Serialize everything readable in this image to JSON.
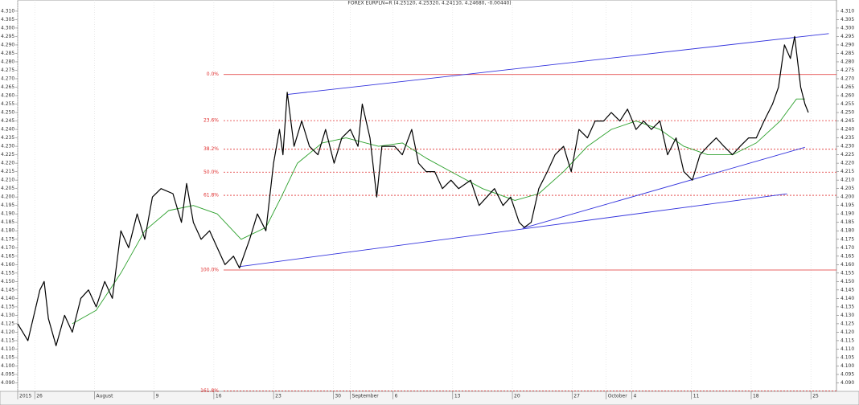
{
  "chart_data": {
    "type": "line",
    "title": "FOREX EURPLN=R (4.25120, 4.25320, 4.24110, 4.24680, -0.00440)",
    "xlim": [
      0,
      96
    ],
    "ylim": [
      4.085,
      4.3166
    ],
    "xticks": [
      {
        "value": 0,
        "label": "2015"
      },
      {
        "value": 2,
        "label": "26"
      },
      {
        "value": 9,
        "label": "August"
      },
      {
        "value": 16,
        "label": "9"
      },
      {
        "value": 23,
        "label": "16"
      },
      {
        "value": 30,
        "label": "23"
      },
      {
        "value": 37,
        "label": "30"
      },
      {
        "value": 39,
        "label": "September"
      },
      {
        "value": 44,
        "label": "6"
      },
      {
        "value": 51,
        "label": "13"
      },
      {
        "value": 58,
        "label": "20"
      },
      {
        "value": 65,
        "label": "27"
      },
      {
        "value": 69,
        "label": "October"
      },
      {
        "value": 72,
        "label": "4"
      },
      {
        "value": 79,
        "label": "11"
      },
      {
        "value": 86,
        "label": "18"
      },
      {
        "value": 93,
        "label": "25"
      }
    ],
    "yticks": [
      {
        "value": 4.09,
        "label": "4.090"
      },
      {
        "value": 4.095,
        "label": "4.095"
      },
      {
        "value": 4.1,
        "label": "4.100"
      },
      {
        "value": 4.105,
        "label": "4.105"
      },
      {
        "value": 4.11,
        "label": "4.110"
      },
      {
        "value": 4.115,
        "label": "4.115"
      },
      {
        "value": 4.12,
        "label": "4.120"
      },
      {
        "value": 4.125,
        "label": "4.125"
      },
      {
        "value": 4.13,
        "label": "4.130"
      },
      {
        "value": 4.135,
        "label": "4.135"
      },
      {
        "value": 4.14,
        "label": "4.140"
      },
      {
        "value": 4.145,
        "label": "4.145"
      },
      {
        "value": 4.15,
        "label": "4.150"
      },
      {
        "value": 4.155,
        "label": "4.155"
      },
      {
        "value": 4.16,
        "label": "4.160"
      },
      {
        "value": 4.165,
        "label": "4.165"
      },
      {
        "value": 4.17,
        "label": "4.170"
      },
      {
        "value": 4.175,
        "label": "4.175"
      },
      {
        "value": 4.18,
        "label": "4.180"
      },
      {
        "value": 4.185,
        "label": "4.185"
      },
      {
        "value": 4.19,
        "label": "4.190"
      },
      {
        "value": 4.195,
        "label": "4.195"
      },
      {
        "value": 4.2,
        "label": "4.200"
      },
      {
        "value": 4.205,
        "label": "4.205"
      },
      {
        "value": 4.21,
        "label": "4.210"
      },
      {
        "value": 4.215,
        "label": "4.215"
      },
      {
        "value": 4.22,
        "label": "4.220"
      },
      {
        "value": 4.225,
        "label": "4.225"
      },
      {
        "value": 4.23,
        "label": "4.230"
      },
      {
        "value": 4.235,
        "label": "4.235"
      },
      {
        "value": 4.24,
        "label": "4.240"
      },
      {
        "value": 4.245,
        "label": "4.245"
      },
      {
        "value": 4.25,
        "label": "4.250"
      },
      {
        "value": 4.255,
        "label": "4.255"
      },
      {
        "value": 4.26,
        "label": "4.260"
      },
      {
        "value": 4.265,
        "label": "4.265"
      },
      {
        "value": 4.27,
        "label": "4.270"
      },
      {
        "value": 4.275,
        "label": "4.275"
      },
      {
        "value": 4.28,
        "label": "4.280"
      },
      {
        "value": 4.285,
        "label": "4.285"
      },
      {
        "value": 4.29,
        "label": "4.290"
      },
      {
        "value": 4.295,
        "label": "4.295"
      },
      {
        "value": 4.3,
        "label": "4.300"
      },
      {
        "value": 4.305,
        "label": "4.305"
      },
      {
        "value": 4.31,
        "label": "4.310"
      }
    ],
    "xgrid": true,
    "series": [
      {
        "color": "#000000",
        "x": [
          0,
          1.2,
          2.6,
          3.1,
          3.6,
          4.5,
          5.5,
          6.4,
          7.4,
          8.3,
          9.2,
          10.2,
          11.1,
          12.1,
          13.0,
          14.0,
          14.9,
          15.8,
          16.8,
          18.2,
          19.2,
          19.8,
          20.6,
          21.5,
          22.5,
          23.4,
          24.3,
          25.3,
          26.0,
          27.2,
          28.1,
          29.1,
          30.0,
          30.7,
          31.1,
          31.6,
          32.4,
          33.3,
          34.2,
          35.2,
          36.1,
          37.1,
          38.0,
          39.0,
          39.9,
          40.4,
          41.3,
          42.1,
          42.7,
          44.2,
          45.1,
          46.2,
          47.0,
          47.9,
          48.9,
          49.8,
          50.8,
          51.7,
          53.1,
          54.1,
          55.0,
          55.9,
          56.9,
          57.8,
          58.8,
          59.4,
          60.2,
          61.1,
          62.1,
          63.0,
          64.0,
          64.9,
          65.8,
          66.8,
          67.7,
          68.7,
          69.6,
          70.6,
          71.5,
          72.5,
          73.4,
          74.3,
          75.3,
          76.2,
          77.2,
          78.1,
          79.1,
          80.0,
          80.9,
          81.9,
          82.8,
          83.8,
          84.7,
          85.7,
          86.6,
          87.5,
          88.5,
          89.2,
          89.9,
          90.6,
          91.1,
          91.8,
          92.3,
          92.7
        ],
        "values": [
          4.125,
          4.115,
          4.145,
          4.15,
          4.128,
          4.112,
          4.13,
          4.12,
          4.14,
          4.145,
          4.135,
          4.15,
          4.14,
          4.18,
          4.17,
          4.19,
          4.175,
          4.2,
          4.205,
          4.202,
          4.185,
          4.208,
          4.185,
          4.175,
          4.18,
          4.17,
          4.16,
          4.165,
          4.158,
          4.175,
          4.19,
          4.18,
          4.22,
          4.24,
          4.225,
          4.262,
          4.23,
          4.245,
          4.23,
          4.225,
          4.24,
          4.22,
          4.235,
          4.24,
          4.23,
          4.255,
          4.235,
          4.2,
          4.23,
          4.23,
          4.225,
          4.24,
          4.22,
          4.215,
          4.215,
          4.205,
          4.21,
          4.205,
          4.21,
          4.195,
          4.2,
          4.205,
          4.195,
          4.2,
          4.185,
          4.182,
          4.185,
          4.205,
          4.215,
          4.225,
          4.23,
          4.215,
          4.24,
          4.235,
          4.245,
          4.245,
          4.25,
          4.245,
          4.252,
          4.24,
          4.245,
          4.24,
          4.245,
          4.225,
          4.235,
          4.215,
          4.21,
          4.225,
          4.23,
          4.235,
          4.23,
          4.225,
          4.23,
          4.235,
          4.235,
          4.245,
          4.255,
          4.265,
          4.29,
          4.282,
          4.295,
          4.265,
          4.255,
          4.25
        ]
      },
      {
        "color": "#2ca02c",
        "x": [
          6.4,
          9.2,
          12.1,
          14.9,
          17.7,
          20.6,
          23.4,
          26.2,
          29.1,
          30.9,
          32.8,
          35.7,
          38.5,
          42.3,
          45.1,
          47.9,
          50.8,
          54.5,
          58.3,
          61.1,
          64.0,
          66.8,
          69.6,
          72.5,
          75.3,
          78.1,
          80.9,
          83.8,
          86.6,
          89.4,
          91.3,
          92.3
        ],
        "values": [
          4.125,
          4.133,
          4.155,
          4.18,
          4.192,
          4.195,
          4.19,
          4.175,
          4.182,
          4.2,
          4.22,
          4.232,
          4.235,
          4.23,
          4.232,
          4.223,
          4.215,
          4.205,
          4.198,
          4.202,
          4.215,
          4.23,
          4.24,
          4.245,
          4.24,
          4.23,
          4.225,
          4.225,
          4.232,
          4.245,
          4.258,
          4.258
        ]
      }
    ],
    "trendlines": [
      {
        "color": "#3333dd",
        "x": [
          31.6,
          95.1
        ],
        "y": [
          4.2607,
          4.2967
        ]
      },
      {
        "color": "#3333dd",
        "x": [
          26.0,
          90.2
        ],
        "y": [
          4.1588,
          4.2019
        ]
      },
      {
        "color": "#3333dd",
        "x": [
          59.2,
          92.3
        ],
        "y": [
          4.1815,
          4.2294
        ]
      }
    ],
    "fib_color": "#e03030",
    "fib_levels": [
      {
        "value": 4.2725,
        "label": "0.0%",
        "style": "solid"
      },
      {
        "value": 4.2452,
        "label": "23.6%",
        "style": "dashed"
      },
      {
        "value": 4.2283,
        "label": "38.2%",
        "style": "dashed"
      },
      {
        "value": 4.2147,
        "label": "50.0%",
        "style": "dashed"
      },
      {
        "value": 4.201,
        "label": "61.8%",
        "style": "dashed"
      },
      {
        "value": 4.1568,
        "label": "100.0%",
        "style": "solid"
      },
      {
        "value": 4.0853,
        "label": "161.8%",
        "style": "dashed"
      }
    ]
  }
}
